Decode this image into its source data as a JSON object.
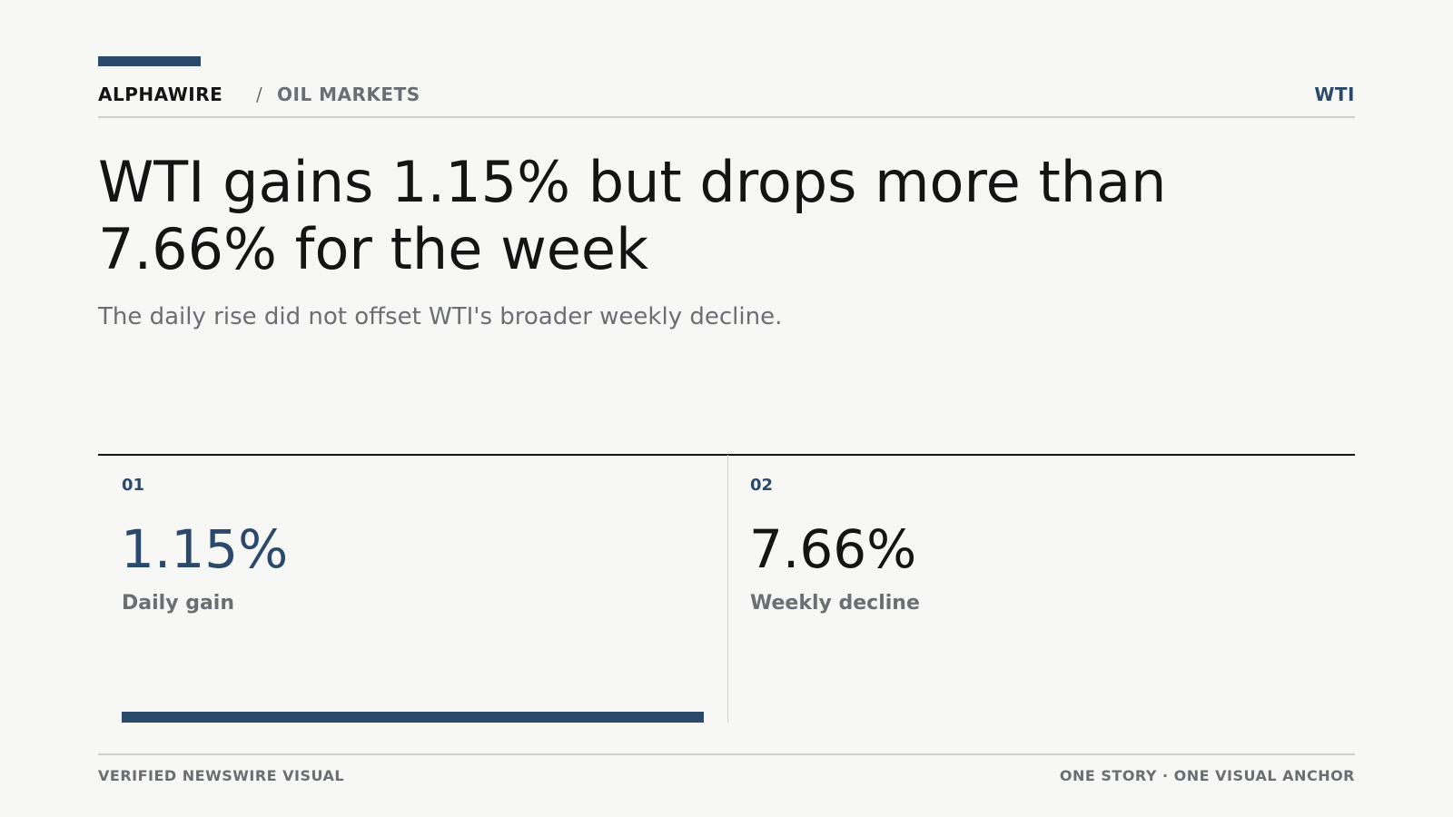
{
  "header": {
    "brand": "ALPHAWIRE",
    "separator": "/",
    "section": "OIL MARKETS",
    "ticker": "WTI"
  },
  "headline": "WTI gains 1.15% but drops more than 7.66% for the week",
  "subtitle": "The daily rise did not offset WTI's broader weekly decline.",
  "stats": [
    {
      "index": "01",
      "value": "1.15%",
      "label": "Daily gain"
    },
    {
      "index": "02",
      "value": "7.66%",
      "label": "Weekly decline"
    }
  ],
  "footer": {
    "left": "VERIFIED NEWSWIRE VISUAL",
    "right": "ONE STORY · ONE VISUAL ANCHOR"
  }
}
